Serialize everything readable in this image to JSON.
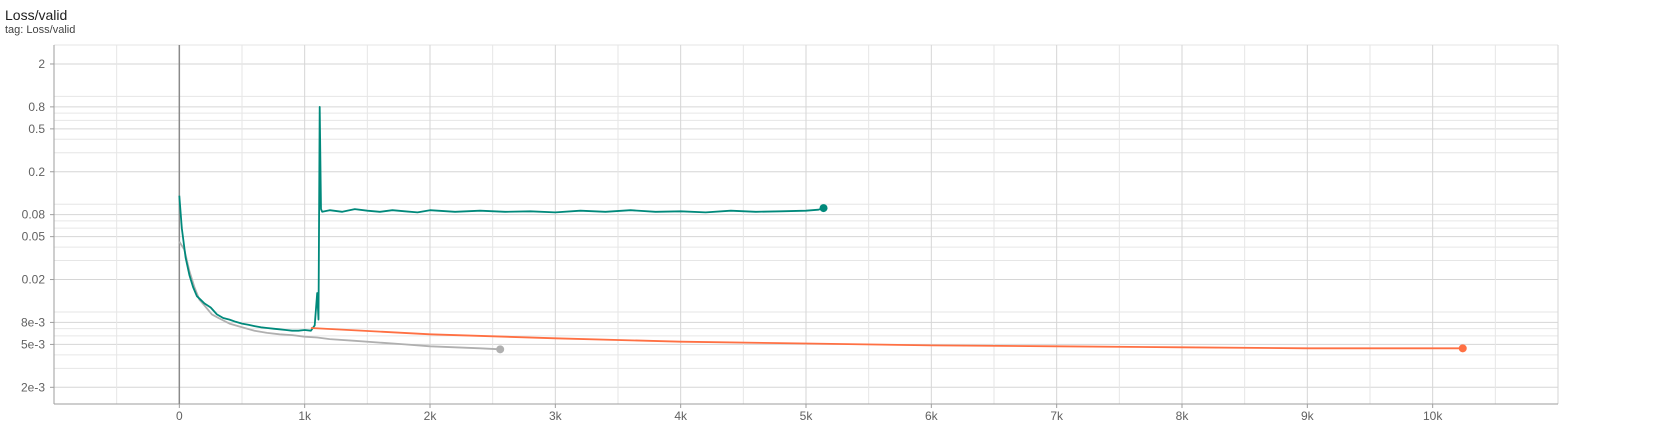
{
  "header": {
    "title": "Loss/valid",
    "tag_label": "tag: Loss/valid"
  },
  "chart_data": {
    "type": "line",
    "title": "Loss/valid",
    "xlabel": "",
    "ylabel": "",
    "y_scale": "log",
    "xlim": [
      -1000,
      11000
    ],
    "ylim": [
      0.0014,
      3.0
    ],
    "grid": true,
    "legend": "none",
    "x_ticks": [
      {
        "value": 0,
        "label": "0"
      },
      {
        "value": 1000,
        "label": "1k"
      },
      {
        "value": 2000,
        "label": "2k"
      },
      {
        "value": 3000,
        "label": "3k"
      },
      {
        "value": 4000,
        "label": "4k"
      },
      {
        "value": 5000,
        "label": "5k"
      },
      {
        "value": 6000,
        "label": "6k"
      },
      {
        "value": 7000,
        "label": "7k"
      },
      {
        "value": 8000,
        "label": "8k"
      },
      {
        "value": 9000,
        "label": "9k"
      },
      {
        "value": 10000,
        "label": "10k"
      }
    ],
    "y_ticks": [
      {
        "value": 2,
        "label": "2"
      },
      {
        "value": 0.8,
        "label": "0.8"
      },
      {
        "value": 0.5,
        "label": "0.5"
      },
      {
        "value": 0.2,
        "label": "0.2"
      },
      {
        "value": 0.08,
        "label": "0.08"
      },
      {
        "value": 0.05,
        "label": "0.05"
      },
      {
        "value": 0.02,
        "label": "0.02"
      },
      {
        "value": 0.008,
        "label": "8e-3"
      },
      {
        "value": 0.005,
        "label": "5e-3"
      },
      {
        "value": 0.002,
        "label": "2e-3"
      }
    ],
    "y_minor_grid": [
      3,
      1,
      0.7,
      0.6,
      0.4,
      0.3,
      0.1,
      0.07,
      0.06,
      0.04,
      0.03,
      0.01,
      0.007,
      0.006,
      0.004,
      0.003
    ],
    "series": [
      {
        "color": "#b0b0b0",
        "x": [
          0,
          40,
          80,
          120,
          160,
          200,
          260,
          320,
          400,
          500,
          600,
          700,
          800,
          900,
          1000,
          1100,
          1200,
          1400,
          1600,
          1800,
          2000,
          2200,
          2400,
          2560
        ],
        "y": [
          0.045,
          0.038,
          0.024,
          0.017,
          0.013,
          0.0115,
          0.0095,
          0.0087,
          0.0078,
          0.0072,
          0.0067,
          0.0064,
          0.0062,
          0.0061,
          0.0059,
          0.0058,
          0.0056,
          0.0054,
          0.0052,
          0.005,
          0.0048,
          0.0047,
          0.0046,
          0.0045
        ],
        "end_marker": true
      },
      {
        "color": "#00897b",
        "x": [
          0,
          20,
          50,
          80,
          110,
          140,
          170,
          200,
          250,
          300,
          350,
          400,
          450,
          500,
          550,
          600,
          650,
          700,
          750,
          800,
          850,
          900,
          950,
          1000,
          1050,
          1080,
          1100,
          1110,
          1120,
          1130,
          1140,
          1200,
          1300,
          1400,
          1500,
          1600,
          1700,
          1800,
          1900,
          2000,
          2200,
          2400,
          2600,
          2800,
          3000,
          3200,
          3400,
          3600,
          3800,
          4000,
          4200,
          4400,
          4600,
          4800,
          5000,
          5100,
          5140
        ],
        "y": [
          0.12,
          0.06,
          0.032,
          0.022,
          0.017,
          0.014,
          0.013,
          0.012,
          0.011,
          0.0095,
          0.0088,
          0.0085,
          0.0081,
          0.0078,
          0.0076,
          0.0074,
          0.0072,
          0.0071,
          0.007,
          0.0069,
          0.0068,
          0.0067,
          0.0067,
          0.0068,
          0.0067,
          0.0075,
          0.015,
          0.0085,
          0.8,
          0.09,
          0.085,
          0.088,
          0.085,
          0.09,
          0.087,
          0.085,
          0.088,
          0.086,
          0.084,
          0.088,
          0.085,
          0.087,
          0.085,
          0.086,
          0.084,
          0.087,
          0.085,
          0.088,
          0.085,
          0.086,
          0.084,
          0.087,
          0.085,
          0.086,
          0.087,
          0.089,
          0.092
        ],
        "end_marker": true
      },
      {
        "color": "#ff7043",
        "x": [
          1050,
          2000,
          3000,
          4000,
          5000,
          6000,
          7000,
          8000,
          9000,
          10000,
          10240
        ],
        "y": [
          0.0071,
          0.0062,
          0.0057,
          0.0053,
          0.0051,
          0.0049,
          0.0048,
          0.0047,
          0.0046,
          0.0046,
          0.0046
        ],
        "end_marker": true
      }
    ]
  }
}
